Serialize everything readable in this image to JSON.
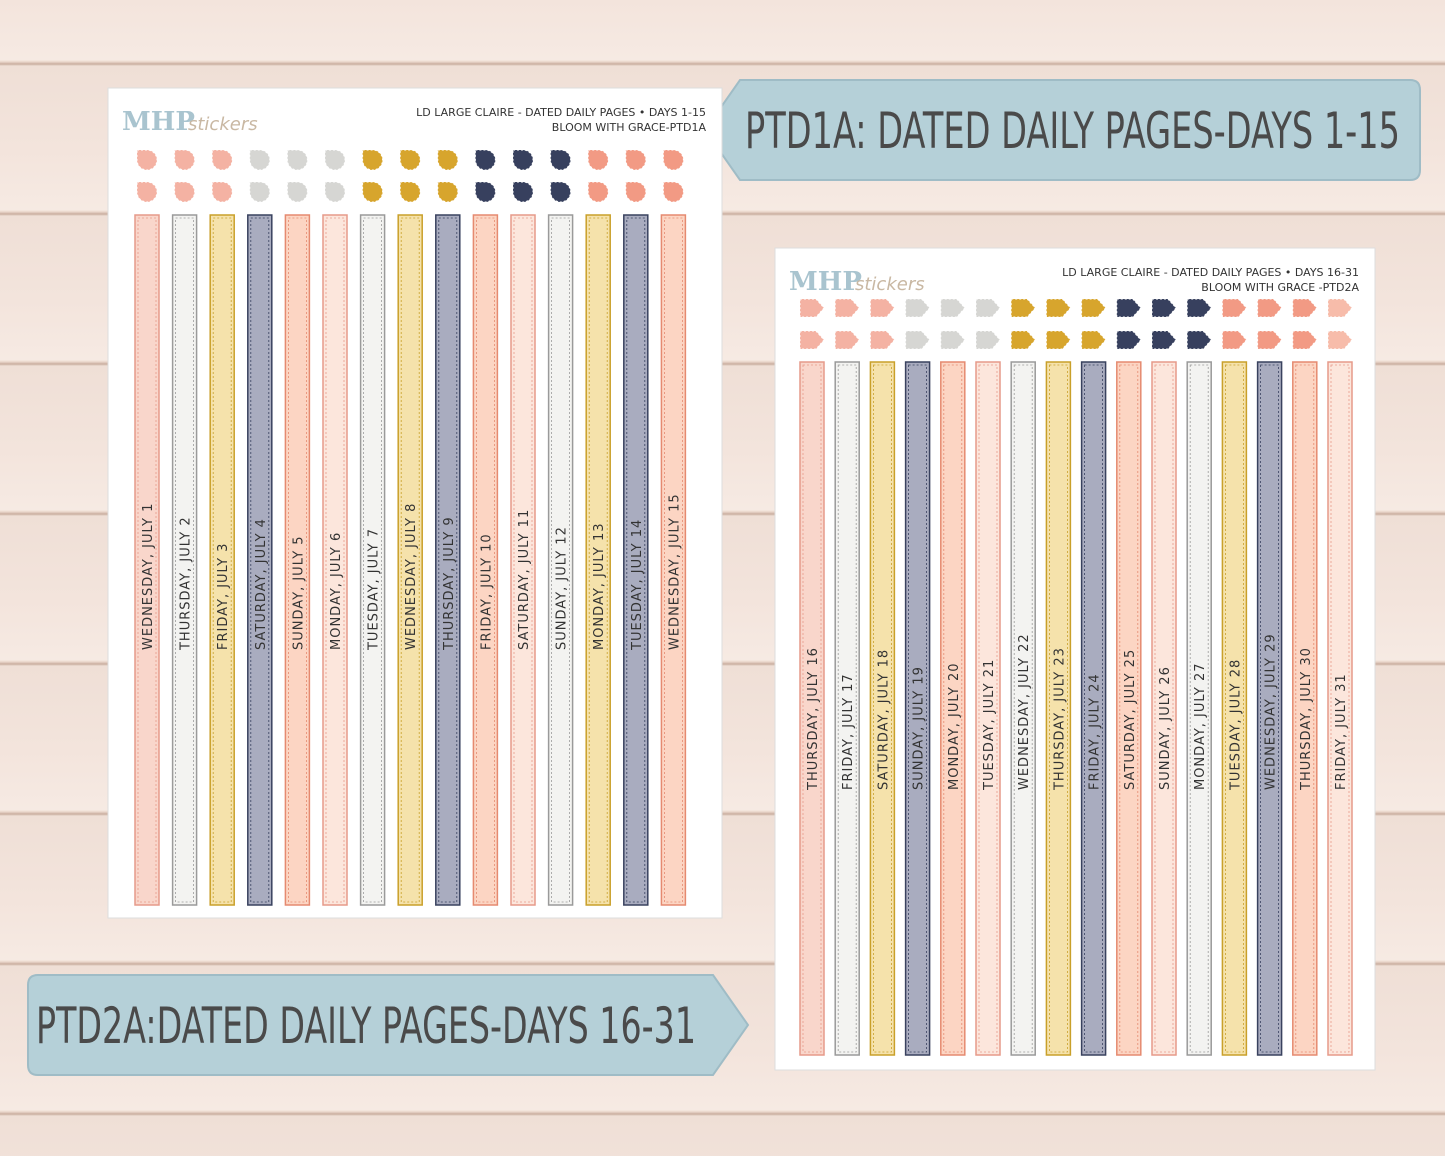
{
  "banners": [
    {
      "text": "PTD1A: DATED DAILY PAGES-DAYS 1-15"
    },
    {
      "text": "PTD2A:DATED DAILY PAGES-DAYS 16-31"
    }
  ],
  "sheets": [
    {
      "brand": "MHP",
      "brand_script": "stickers",
      "header": [
        "LD LARGE CLAIRE - DATED DAILY PAGES • DAYS 1-15",
        "BLOOM WITH GRACE-PTD1A"
      ],
      "strips": [
        "WEDNESDAY, JULY 1",
        "THURSDAY, JULY 2",
        "FRIDAY, JULY 3",
        "SATURDAY, JULY 4",
        "SUNDAY, JULY 5",
        "MONDAY, JULY 6",
        "TUESDAY, JULY 7",
        "WEDNESDAY, JULY 8",
        "THURSDAY, JULY 9",
        "FRIDAY, JULY 10",
        "SATURDAY, JULY 11",
        "SUNDAY, JULY 12",
        "MONDAY, JULY 13",
        "TUESDAY, JULY 14",
        "WEDNESDAY, JULY 15"
      ]
    },
    {
      "brand": "MHP",
      "brand_script": "stickers",
      "header": [
        "LD LARGE CLAIRE - DATED DAILY PAGES • DAYS 16-31",
        "BLOOM WITH GRACE -PTD2A"
      ],
      "strips": [
        "THURSDAY, JULY 16",
        "FRIDAY, JULY 17",
        "SATURDAY, JULY 18",
        "SUNDAY, JULY 19",
        "MONDAY, JULY 20",
        "TUESDAY, JULY 21",
        "WEDNESDAY, JULY 22",
        "THURSDAY, JULY 23",
        "FRIDAY, JULY 24",
        "SATURDAY, JULY 25",
        "SUNDAY, JULY 26",
        "MONDAY, JULY 27",
        "TUESDAY, JULY 28",
        "WEDNESDAY, JULY 29",
        "THURSDAY, JULY 30",
        "FRIDAY, JULY 31"
      ]
    }
  ]
}
